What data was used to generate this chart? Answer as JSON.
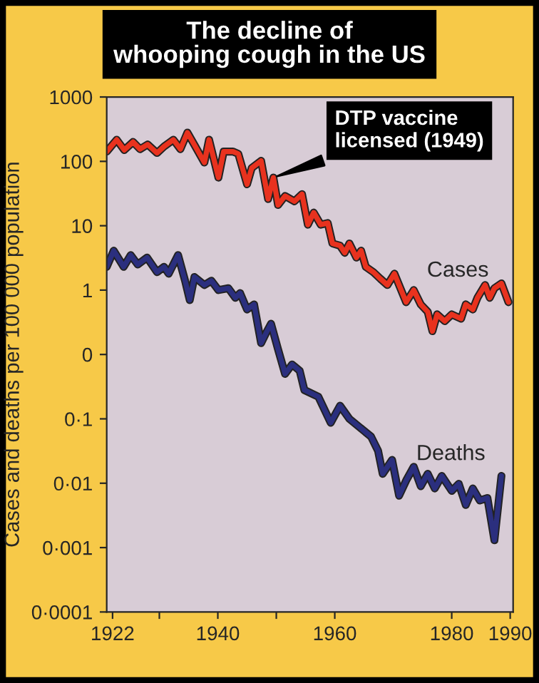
{
  "chart_data": {
    "type": "line",
    "title": "The decline of\nwhooping cough in the US",
    "ylabel": "Cases and deaths per 100 000 population",
    "log": "y",
    "grid": false,
    "legend": false,
    "marker": "none",
    "line_style": "solid",
    "xlim": [
      1921,
      1990.5
    ],
    "xticks": [
      1922,
      {
        "value": 1930,
        "label": null
      },
      1940,
      {
        "value": 1950,
        "label": null
      },
      1960,
      1980,
      1990
    ],
    "ylim": [
      1e-05,
      1000
    ],
    "yticks": [
      1000,
      100,
      10,
      1,
      {
        "value": 0.1,
        "label": "0"
      },
      {
        "value": 0.01,
        "label": "0·1"
      },
      {
        "value": 0.001,
        "label": "0·01"
      },
      {
        "value": 0.0001,
        "label": "0·001"
      },
      {
        "value": 1e-05,
        "label": "0·0001"
      }
    ],
    "annotations": [
      {
        "text": "DTP vaccine\nlicensed (1949)",
        "x": 1949.5,
        "y": 56
      }
    ],
    "series": [
      {
        "name": "Cases",
        "color": "#e8321e",
        "x": [
          1921,
          1922.7,
          1924,
          1925.5,
          1926.7,
          1928,
          1929.6,
          1930.8,
          1932.4,
          1933.6,
          1934.8,
          1936,
          1937.7,
          1938.5,
          1940.1,
          1941,
          1942.6,
          1943.5,
          1945,
          1945.8,
          1947.4,
          1948.6,
          1949.5,
          1950.3,
          1951.5,
          1953.1,
          1954.4,
          1955.4,
          1956.4,
          1957.6,
          1958.8,
          1959.6,
          1960.9,
          1961.7,
          1962.5,
          1963.7,
          1964.5,
          1965.3,
          1966.6,
          1967.8,
          1969,
          1970.2,
          1971,
          1972.2,
          1973.5,
          1974.7,
          1975.9,
          1976.7,
          1977.5,
          1978.8,
          1980,
          1981.6,
          1982.4,
          1983.6,
          1984.4,
          1985.7,
          1986.5,
          1987.3,
          1988.5,
          1989.7
        ],
        "values": [
          142,
          217,
          150,
          200,
          155,
          183,
          135,
          170,
          217,
          155,
          280,
          180,
          96,
          217,
          56,
          142,
          142,
          131,
          44,
          79,
          102,
          26,
          56,
          21,
          29,
          24,
          31,
          10.4,
          16,
          10.4,
          11,
          5.3,
          4.9,
          3.8,
          5.3,
          3.2,
          4.1,
          2.3,
          1.9,
          1.5,
          1.2,
          1.8,
          1.2,
          0.65,
          1.0,
          0.6,
          0.46,
          0.23,
          0.42,
          0.33,
          0.42,
          0.36,
          0.6,
          0.5,
          0.76,
          1.2,
          0.76,
          1.07,
          1.27,
          0.65
        ]
      },
      {
        "name": "Deaths",
        "color": "#2b2f7e",
        "x": [
          1921,
          1922.2,
          1923.9,
          1925.1,
          1926.3,
          1927.9,
          1929.6,
          1930.8,
          1931.6,
          1933.2,
          1934.4,
          1935.2,
          1936,
          1937.7,
          1938.9,
          1940.1,
          1941.8,
          1943,
          1943.8,
          1945,
          1946.2,
          1947.4,
          1948.3,
          1949.1,
          1950.3,
          1951.5,
          1952.7,
          1954,
          1954.8,
          1957.2,
          1959.3,
          1960.9,
          1962.5,
          1966.2,
          1967.4,
          1968.2,
          1969.8,
          1971,
          1972.2,
          1973.5,
          1974.7,
          1975.9,
          1977.1,
          1978.3,
          1980,
          1981.2,
          1982.4,
          1983.6,
          1984.8,
          1986.1,
          1987.3,
          1988.5
        ],
        "values": [
          2.3,
          4.1,
          2.3,
          3.5,
          2.5,
          3.2,
          1.9,
          2.3,
          1.8,
          3.5,
          1.4,
          0.7,
          1.6,
          1.2,
          1.4,
          1.0,
          1.07,
          0.76,
          0.9,
          0.5,
          0.6,
          0.15,
          0.22,
          0.3,
          0.12,
          0.05,
          0.07,
          0.056,
          0.028,
          0.022,
          0.0087,
          0.016,
          0.01,
          0.0053,
          0.0032,
          0.0014,
          0.0023,
          0.00064,
          0.0011,
          0.0018,
          0.0009,
          0.0014,
          0.00083,
          0.0013,
          0.00076,
          0.00098,
          0.00046,
          0.00083,
          0.00054,
          0.00059,
          0.00013,
          0.0013
        ]
      }
    ]
  }
}
